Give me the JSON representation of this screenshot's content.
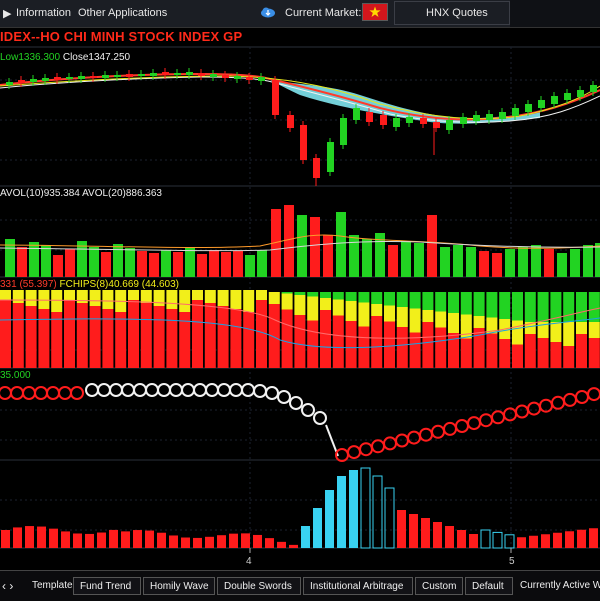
{
  "topbar": {
    "information": "Information",
    "other_apps": "Other Applications",
    "current_market_label": "Current Market:",
    "market_quote": "HNX Quotes"
  },
  "chart_title": "IDEX--HO CHI MINH STOCK INDEX  GP",
  "price_panel": {
    "low_label": "Low1336.300",
    "close_label": "Close1347.250"
  },
  "volume_panel": {
    "avol10_label": "AVOL(10)935.384",
    "avol20_label": "AVOL(20)886.363"
  },
  "fchips_panel": {
    "prefix_label": "331 (55.397)",
    "fchips_label": "FCHIPS(8)40.669 (44.603)"
  },
  "circle_panel": {
    "value_label": "35.000"
  },
  "x_axis": {
    "tick_4": "4",
    "tick_5": "5"
  },
  "bottombar": {
    "template_label": "Template",
    "buttons": [
      "Fund Trend",
      "Homily Wave",
      "Double Swords",
      "Institutional Arbitrage",
      "Custom",
      "Default"
    ],
    "active_label": "Currently Active Wi"
  },
  "colors": {
    "up": "#22d322",
    "down": "#ff1c1c",
    "yellow": "#f2ef1a",
    "cyan": "#39d2f2",
    "cloud_fill": "#7fe6ef"
  }
}
